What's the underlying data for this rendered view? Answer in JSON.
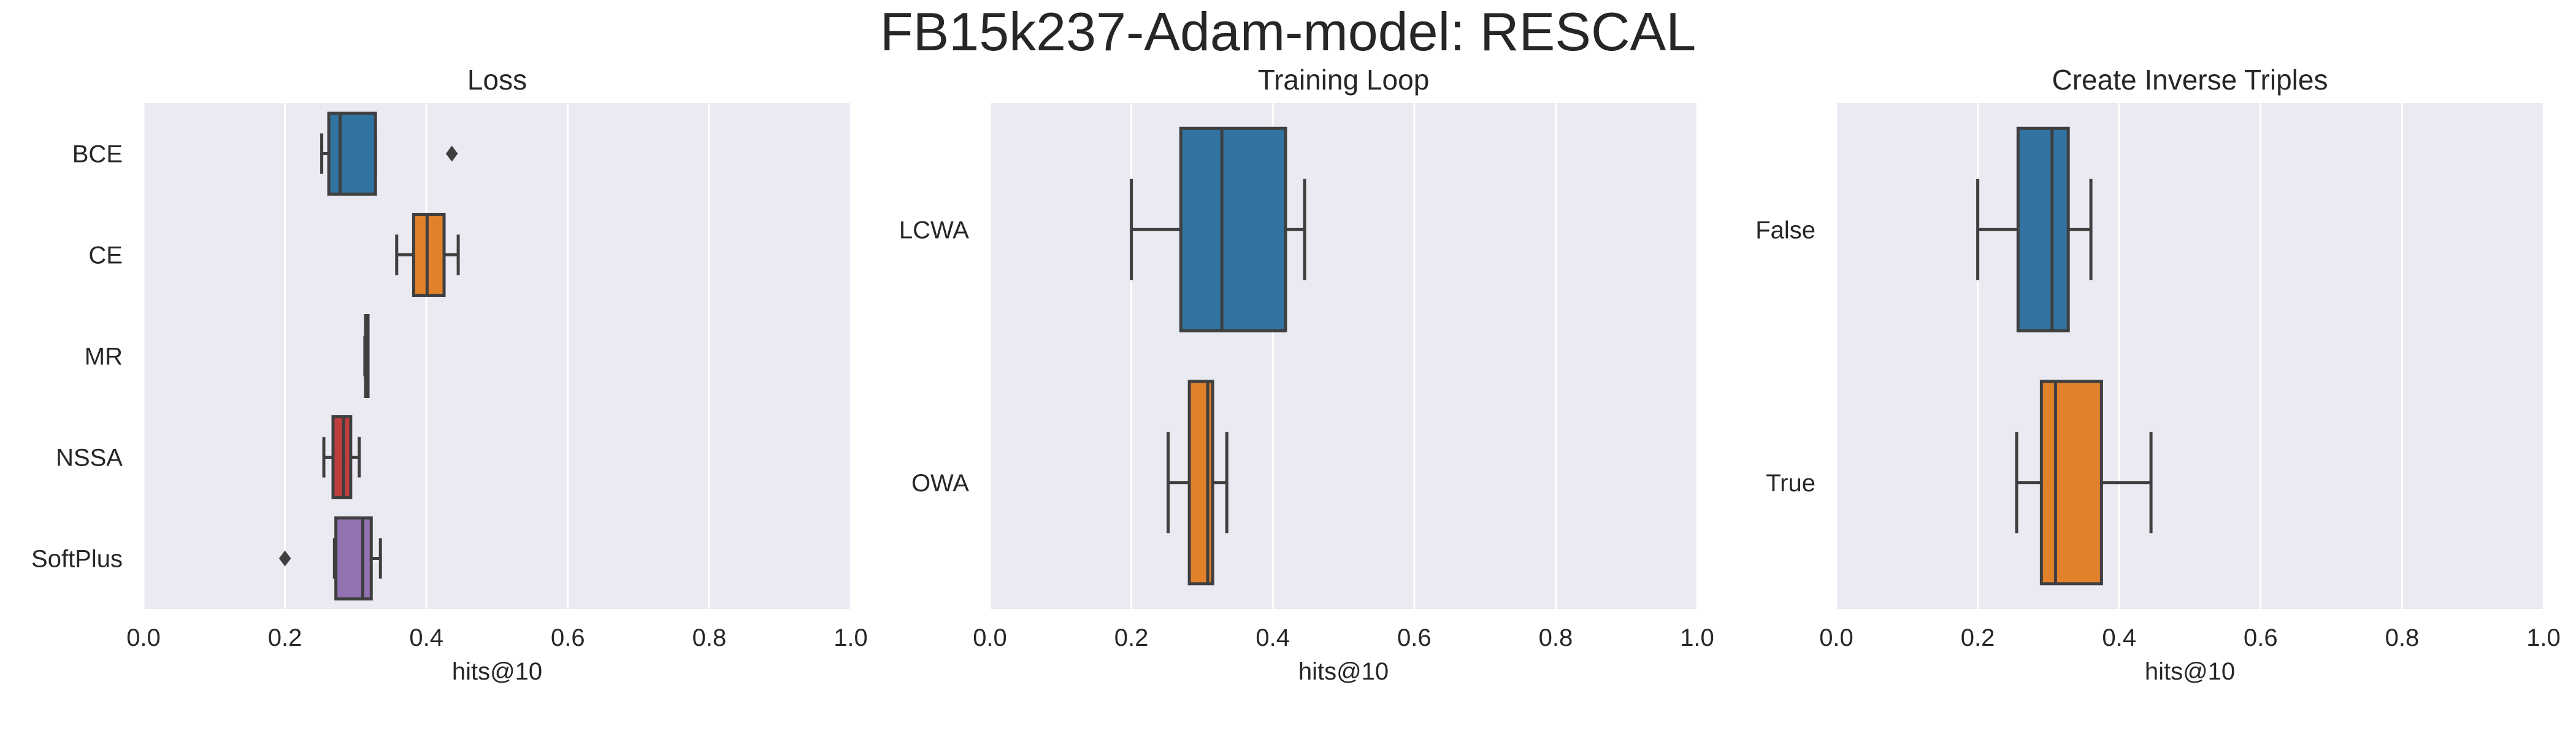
{
  "chart_data": {
    "suptitle": "FB15k237-Adam-model: RESCAL",
    "panels": [
      {
        "type": "box",
        "orientation": "horizontal",
        "title": "Loss",
        "xlabel": "hits@10",
        "xlim": [
          0,
          1
        ],
        "xticks": [
          "0.0",
          "0.2",
          "0.4",
          "0.6",
          "0.8",
          "1.0"
        ],
        "grid": true,
        "categories": [
          "BCE",
          "CE",
          "MR",
          "NSSA",
          "SoftPlus"
        ],
        "boxes": [
          {
            "category": "BCE",
            "color": "#3274a1",
            "whisker_low": 0.252,
            "q1": 0.262,
            "median": 0.278,
            "q3": 0.328,
            "whisker_high": 0.328,
            "outliers": [
              0.436
            ]
          },
          {
            "category": "CE",
            "color": "#e1812c",
            "whisker_low": 0.358,
            "q1": 0.382,
            "median": 0.401,
            "q3": 0.425,
            "whisker_high": 0.445,
            "outliers": []
          },
          {
            "category": "MR",
            "color": "#3a923a",
            "whisker_low": 0.313,
            "q1": 0.314,
            "median": 0.315,
            "q3": 0.316,
            "whisker_high": 0.317,
            "outliers": []
          },
          {
            "category": "NSSA",
            "color": "#c03d3e",
            "whisker_low": 0.255,
            "q1": 0.268,
            "median": 0.283,
            "q3": 0.293,
            "whisker_high": 0.305,
            "outliers": []
          },
          {
            "category": "SoftPlus",
            "color": "#9372b2",
            "whisker_low": 0.27,
            "q1": 0.272,
            "median": 0.31,
            "q3": 0.322,
            "whisker_high": 0.335,
            "outliers": [
              0.2
            ]
          }
        ]
      },
      {
        "type": "box",
        "orientation": "horizontal",
        "title": "Training Loop",
        "xlabel": "hits@10",
        "xlim": [
          0,
          1
        ],
        "xticks": [
          "0.0",
          "0.2",
          "0.4",
          "0.6",
          "0.8",
          "1.0"
        ],
        "grid": true,
        "categories": [
          "LCWA",
          "OWA"
        ],
        "boxes": [
          {
            "category": "LCWA",
            "color": "#3274a1",
            "whisker_low": 0.2,
            "q1": 0.27,
            "median": 0.328,
            "q3": 0.418,
            "whisker_high": 0.445,
            "outliers": []
          },
          {
            "category": "OWA",
            "color": "#e1812c",
            "whisker_low": 0.252,
            "q1": 0.282,
            "median": 0.308,
            "q3": 0.315,
            "whisker_high": 0.335,
            "outliers": []
          }
        ]
      },
      {
        "type": "box",
        "orientation": "horizontal",
        "title": "Create Inverse Triples",
        "xlabel": "hits@10",
        "xlim": [
          0,
          1
        ],
        "xticks": [
          "0.0",
          "0.2",
          "0.4",
          "0.6",
          "0.8",
          "1.0"
        ],
        "grid": true,
        "categories": [
          "False",
          "True"
        ],
        "boxes": [
          {
            "category": "False",
            "color": "#3274a1",
            "whisker_low": 0.2,
            "q1": 0.257,
            "median": 0.305,
            "q3": 0.328,
            "whisker_high": 0.36,
            "outliers": []
          },
          {
            "category": "True",
            "color": "#e1812c",
            "whisker_low": 0.255,
            "q1": 0.29,
            "median": 0.31,
            "q3": 0.375,
            "whisker_high": 0.445,
            "outliers": []
          }
        ]
      }
    ]
  }
}
